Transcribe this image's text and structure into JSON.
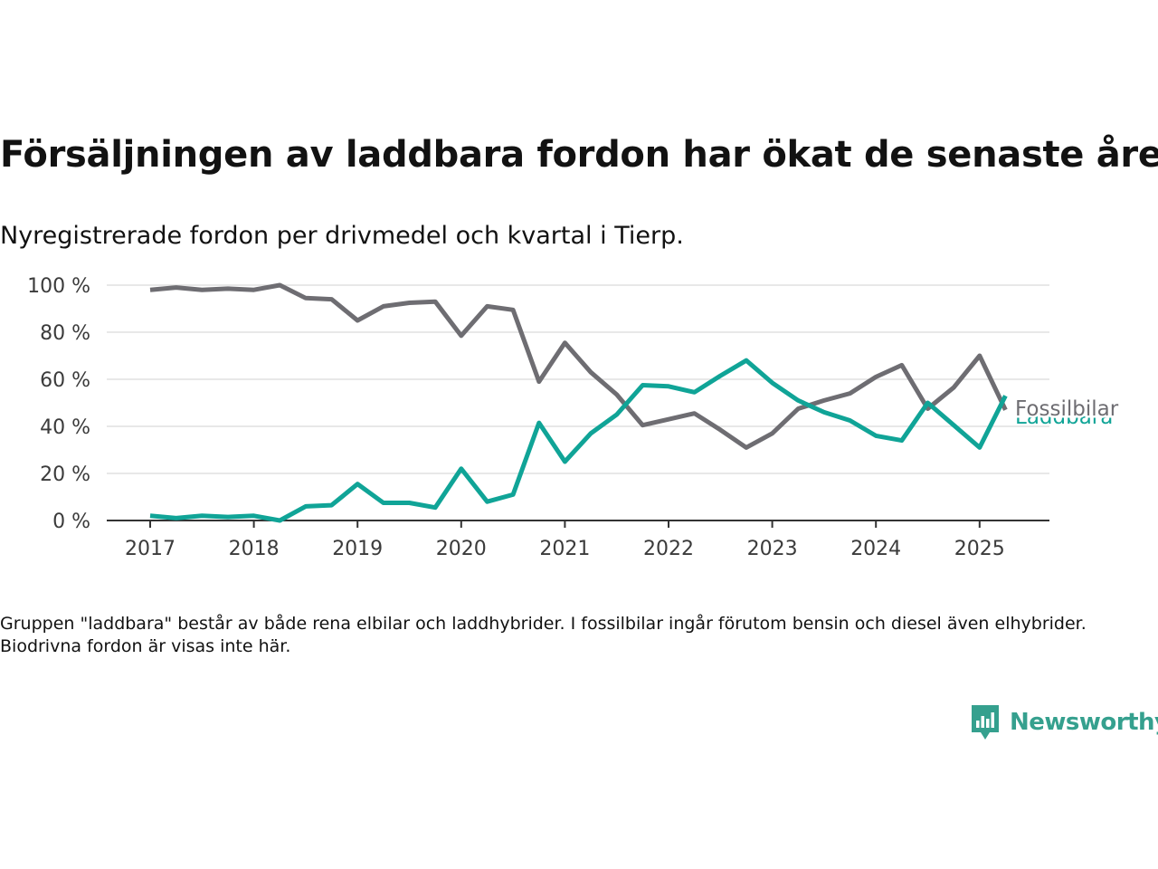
{
  "title": "Försäljningen av laddbara fordon har ökat de senaste åren",
  "subtitle": "Nyregistrerade fordon per drivmedel och kvartal i Tierp.",
  "footnote": "Gruppen \"laddbara\" består av både rena elbilar och laddhybrider. I fossilbilar ingår förutom bensin och diesel även elhybrider. Biodrivna fordon är visas inte här.",
  "logo": {
    "text": "Newsworthy",
    "icon": "newsworthy-logo-icon",
    "color": "#35a08e"
  },
  "chart_data": {
    "type": "line",
    "x": [
      "2017Q1",
      "2017Q2",
      "2017Q3",
      "2017Q4",
      "2018Q1",
      "2018Q2",
      "2018Q3",
      "2018Q4",
      "2019Q1",
      "2019Q2",
      "2019Q3",
      "2019Q4",
      "2020Q1",
      "2020Q2",
      "2020Q3",
      "2020Q4",
      "2021Q1",
      "2021Q2",
      "2021Q3",
      "2021Q4",
      "2022Q1",
      "2022Q2",
      "2022Q3",
      "2022Q4",
      "2023Q1",
      "2023Q2",
      "2023Q3",
      "2023Q4",
      "2024Q1",
      "2024Q2",
      "2024Q3",
      "2024Q4",
      "2025Q1",
      "2025Q2"
    ],
    "x_tick_labels": [
      "2017",
      "2018",
      "2019",
      "2020",
      "2021",
      "2022",
      "2023",
      "2024",
      "2025"
    ],
    "y_tick_labels": [
      "0 %",
      "20 %",
      "40 %",
      "60 %",
      "80 %",
      "100 %"
    ],
    "ylim": [
      0,
      100
    ],
    "grid": true,
    "legend": "direct labels at line ends",
    "series": [
      {
        "name": "Fossilbilar",
        "color": "#6e6d72",
        "values": [
          98,
          99,
          98,
          98.5,
          98,
          100,
          94.5,
          94,
          85,
          91,
          92.5,
          93,
          78.5,
          91,
          89.5,
          59,
          75.5,
          63,
          53.5,
          40.5,
          43,
          45.5,
          38.5,
          31,
          37,
          47.5,
          51,
          54,
          61,
          66,
          47.5,
          56.5,
          70,
          47
        ]
      },
      {
        "name": "Laddbara",
        "color": "#10a497",
        "values": [
          2,
          1,
          2,
          1.5,
          2,
          0,
          6,
          6.5,
          15.5,
          7.5,
          7.5,
          5.5,
          22,
          8,
          11,
          41.5,
          25,
          37,
          45,
          57.5,
          57,
          54.5,
          61.5,
          68,
          58.5,
          51,
          46,
          42.5,
          36,
          34,
          50,
          40.5,
          31,
          53
        ]
      }
    ]
  }
}
